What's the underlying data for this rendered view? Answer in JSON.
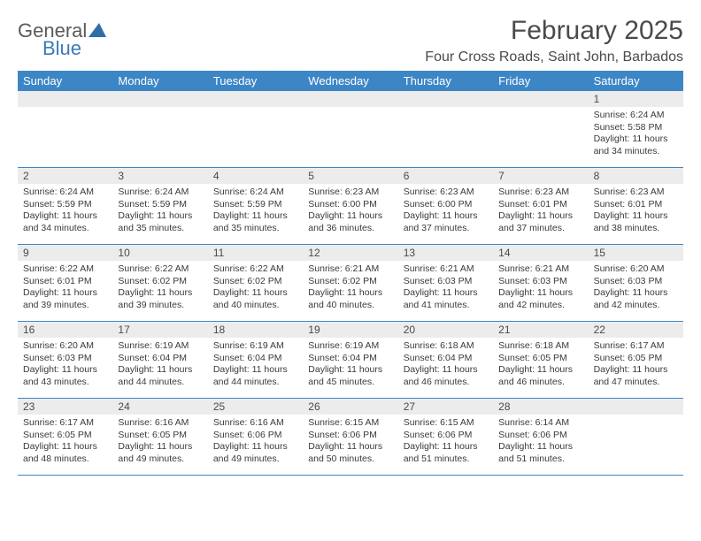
{
  "logo": {
    "part1": "General",
    "part2": "Blue"
  },
  "title": "February 2025",
  "location": "Four Cross Roads, Saint John, Barbados",
  "colors": {
    "header_bar": "#3d86c6",
    "daynum_bg": "#ececec",
    "text": "#4a4a4a",
    "logo_blue": "#3a7ab8"
  },
  "day_names": [
    "Sunday",
    "Monday",
    "Tuesday",
    "Wednesday",
    "Thursday",
    "Friday",
    "Saturday"
  ],
  "weeks": [
    [
      null,
      null,
      null,
      null,
      null,
      null,
      {
        "n": "1",
        "sunrise": "Sunrise: 6:24 AM",
        "sunset": "Sunset: 5:58 PM",
        "daylight": "Daylight: 11 hours and 34 minutes."
      }
    ],
    [
      {
        "n": "2",
        "sunrise": "Sunrise: 6:24 AM",
        "sunset": "Sunset: 5:59 PM",
        "daylight": "Daylight: 11 hours and 34 minutes."
      },
      {
        "n": "3",
        "sunrise": "Sunrise: 6:24 AM",
        "sunset": "Sunset: 5:59 PM",
        "daylight": "Daylight: 11 hours and 35 minutes."
      },
      {
        "n": "4",
        "sunrise": "Sunrise: 6:24 AM",
        "sunset": "Sunset: 5:59 PM",
        "daylight": "Daylight: 11 hours and 35 minutes."
      },
      {
        "n": "5",
        "sunrise": "Sunrise: 6:23 AM",
        "sunset": "Sunset: 6:00 PM",
        "daylight": "Daylight: 11 hours and 36 minutes."
      },
      {
        "n": "6",
        "sunrise": "Sunrise: 6:23 AM",
        "sunset": "Sunset: 6:00 PM",
        "daylight": "Daylight: 11 hours and 37 minutes."
      },
      {
        "n": "7",
        "sunrise": "Sunrise: 6:23 AM",
        "sunset": "Sunset: 6:01 PM",
        "daylight": "Daylight: 11 hours and 37 minutes."
      },
      {
        "n": "8",
        "sunrise": "Sunrise: 6:23 AM",
        "sunset": "Sunset: 6:01 PM",
        "daylight": "Daylight: 11 hours and 38 minutes."
      }
    ],
    [
      {
        "n": "9",
        "sunrise": "Sunrise: 6:22 AM",
        "sunset": "Sunset: 6:01 PM",
        "daylight": "Daylight: 11 hours and 39 minutes."
      },
      {
        "n": "10",
        "sunrise": "Sunrise: 6:22 AM",
        "sunset": "Sunset: 6:02 PM",
        "daylight": "Daylight: 11 hours and 39 minutes."
      },
      {
        "n": "11",
        "sunrise": "Sunrise: 6:22 AM",
        "sunset": "Sunset: 6:02 PM",
        "daylight": "Daylight: 11 hours and 40 minutes."
      },
      {
        "n": "12",
        "sunrise": "Sunrise: 6:21 AM",
        "sunset": "Sunset: 6:02 PM",
        "daylight": "Daylight: 11 hours and 40 minutes."
      },
      {
        "n": "13",
        "sunrise": "Sunrise: 6:21 AM",
        "sunset": "Sunset: 6:03 PM",
        "daylight": "Daylight: 11 hours and 41 minutes."
      },
      {
        "n": "14",
        "sunrise": "Sunrise: 6:21 AM",
        "sunset": "Sunset: 6:03 PM",
        "daylight": "Daylight: 11 hours and 42 minutes."
      },
      {
        "n": "15",
        "sunrise": "Sunrise: 6:20 AM",
        "sunset": "Sunset: 6:03 PM",
        "daylight": "Daylight: 11 hours and 42 minutes."
      }
    ],
    [
      {
        "n": "16",
        "sunrise": "Sunrise: 6:20 AM",
        "sunset": "Sunset: 6:03 PM",
        "daylight": "Daylight: 11 hours and 43 minutes."
      },
      {
        "n": "17",
        "sunrise": "Sunrise: 6:19 AM",
        "sunset": "Sunset: 6:04 PM",
        "daylight": "Daylight: 11 hours and 44 minutes."
      },
      {
        "n": "18",
        "sunrise": "Sunrise: 6:19 AM",
        "sunset": "Sunset: 6:04 PM",
        "daylight": "Daylight: 11 hours and 44 minutes."
      },
      {
        "n": "19",
        "sunrise": "Sunrise: 6:19 AM",
        "sunset": "Sunset: 6:04 PM",
        "daylight": "Daylight: 11 hours and 45 minutes."
      },
      {
        "n": "20",
        "sunrise": "Sunrise: 6:18 AM",
        "sunset": "Sunset: 6:04 PM",
        "daylight": "Daylight: 11 hours and 46 minutes."
      },
      {
        "n": "21",
        "sunrise": "Sunrise: 6:18 AM",
        "sunset": "Sunset: 6:05 PM",
        "daylight": "Daylight: 11 hours and 46 minutes."
      },
      {
        "n": "22",
        "sunrise": "Sunrise: 6:17 AM",
        "sunset": "Sunset: 6:05 PM",
        "daylight": "Daylight: 11 hours and 47 minutes."
      }
    ],
    [
      {
        "n": "23",
        "sunrise": "Sunrise: 6:17 AM",
        "sunset": "Sunset: 6:05 PM",
        "daylight": "Daylight: 11 hours and 48 minutes."
      },
      {
        "n": "24",
        "sunrise": "Sunrise: 6:16 AM",
        "sunset": "Sunset: 6:05 PM",
        "daylight": "Daylight: 11 hours and 49 minutes."
      },
      {
        "n": "25",
        "sunrise": "Sunrise: 6:16 AM",
        "sunset": "Sunset: 6:06 PM",
        "daylight": "Daylight: 11 hours and 49 minutes."
      },
      {
        "n": "26",
        "sunrise": "Sunrise: 6:15 AM",
        "sunset": "Sunset: 6:06 PM",
        "daylight": "Daylight: 11 hours and 50 minutes."
      },
      {
        "n": "27",
        "sunrise": "Sunrise: 6:15 AM",
        "sunset": "Sunset: 6:06 PM",
        "daylight": "Daylight: 11 hours and 51 minutes."
      },
      {
        "n": "28",
        "sunrise": "Sunrise: 6:14 AM",
        "sunset": "Sunset: 6:06 PM",
        "daylight": "Daylight: 11 hours and 51 minutes."
      },
      null
    ]
  ]
}
